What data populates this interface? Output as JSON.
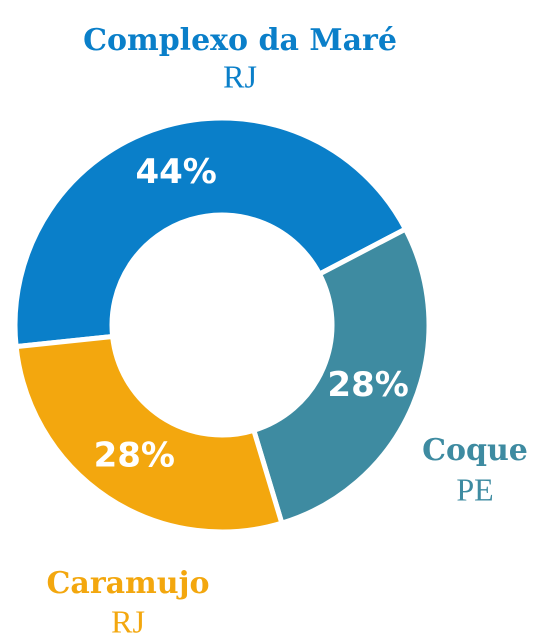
{
  "chart_data": {
    "type": "donut",
    "categories": [
      "Complexo da Maré",
      "Coque",
      "Caramujo"
    ],
    "regions": [
      "RJ",
      "PE",
      "RJ"
    ],
    "values": [
      44,
      28,
      28
    ],
    "value_labels": [
      "44%",
      "28%",
      "28%"
    ],
    "colors": [
      "#0a7fc9",
      "#3e8ba1",
      "#f3a70e"
    ]
  }
}
